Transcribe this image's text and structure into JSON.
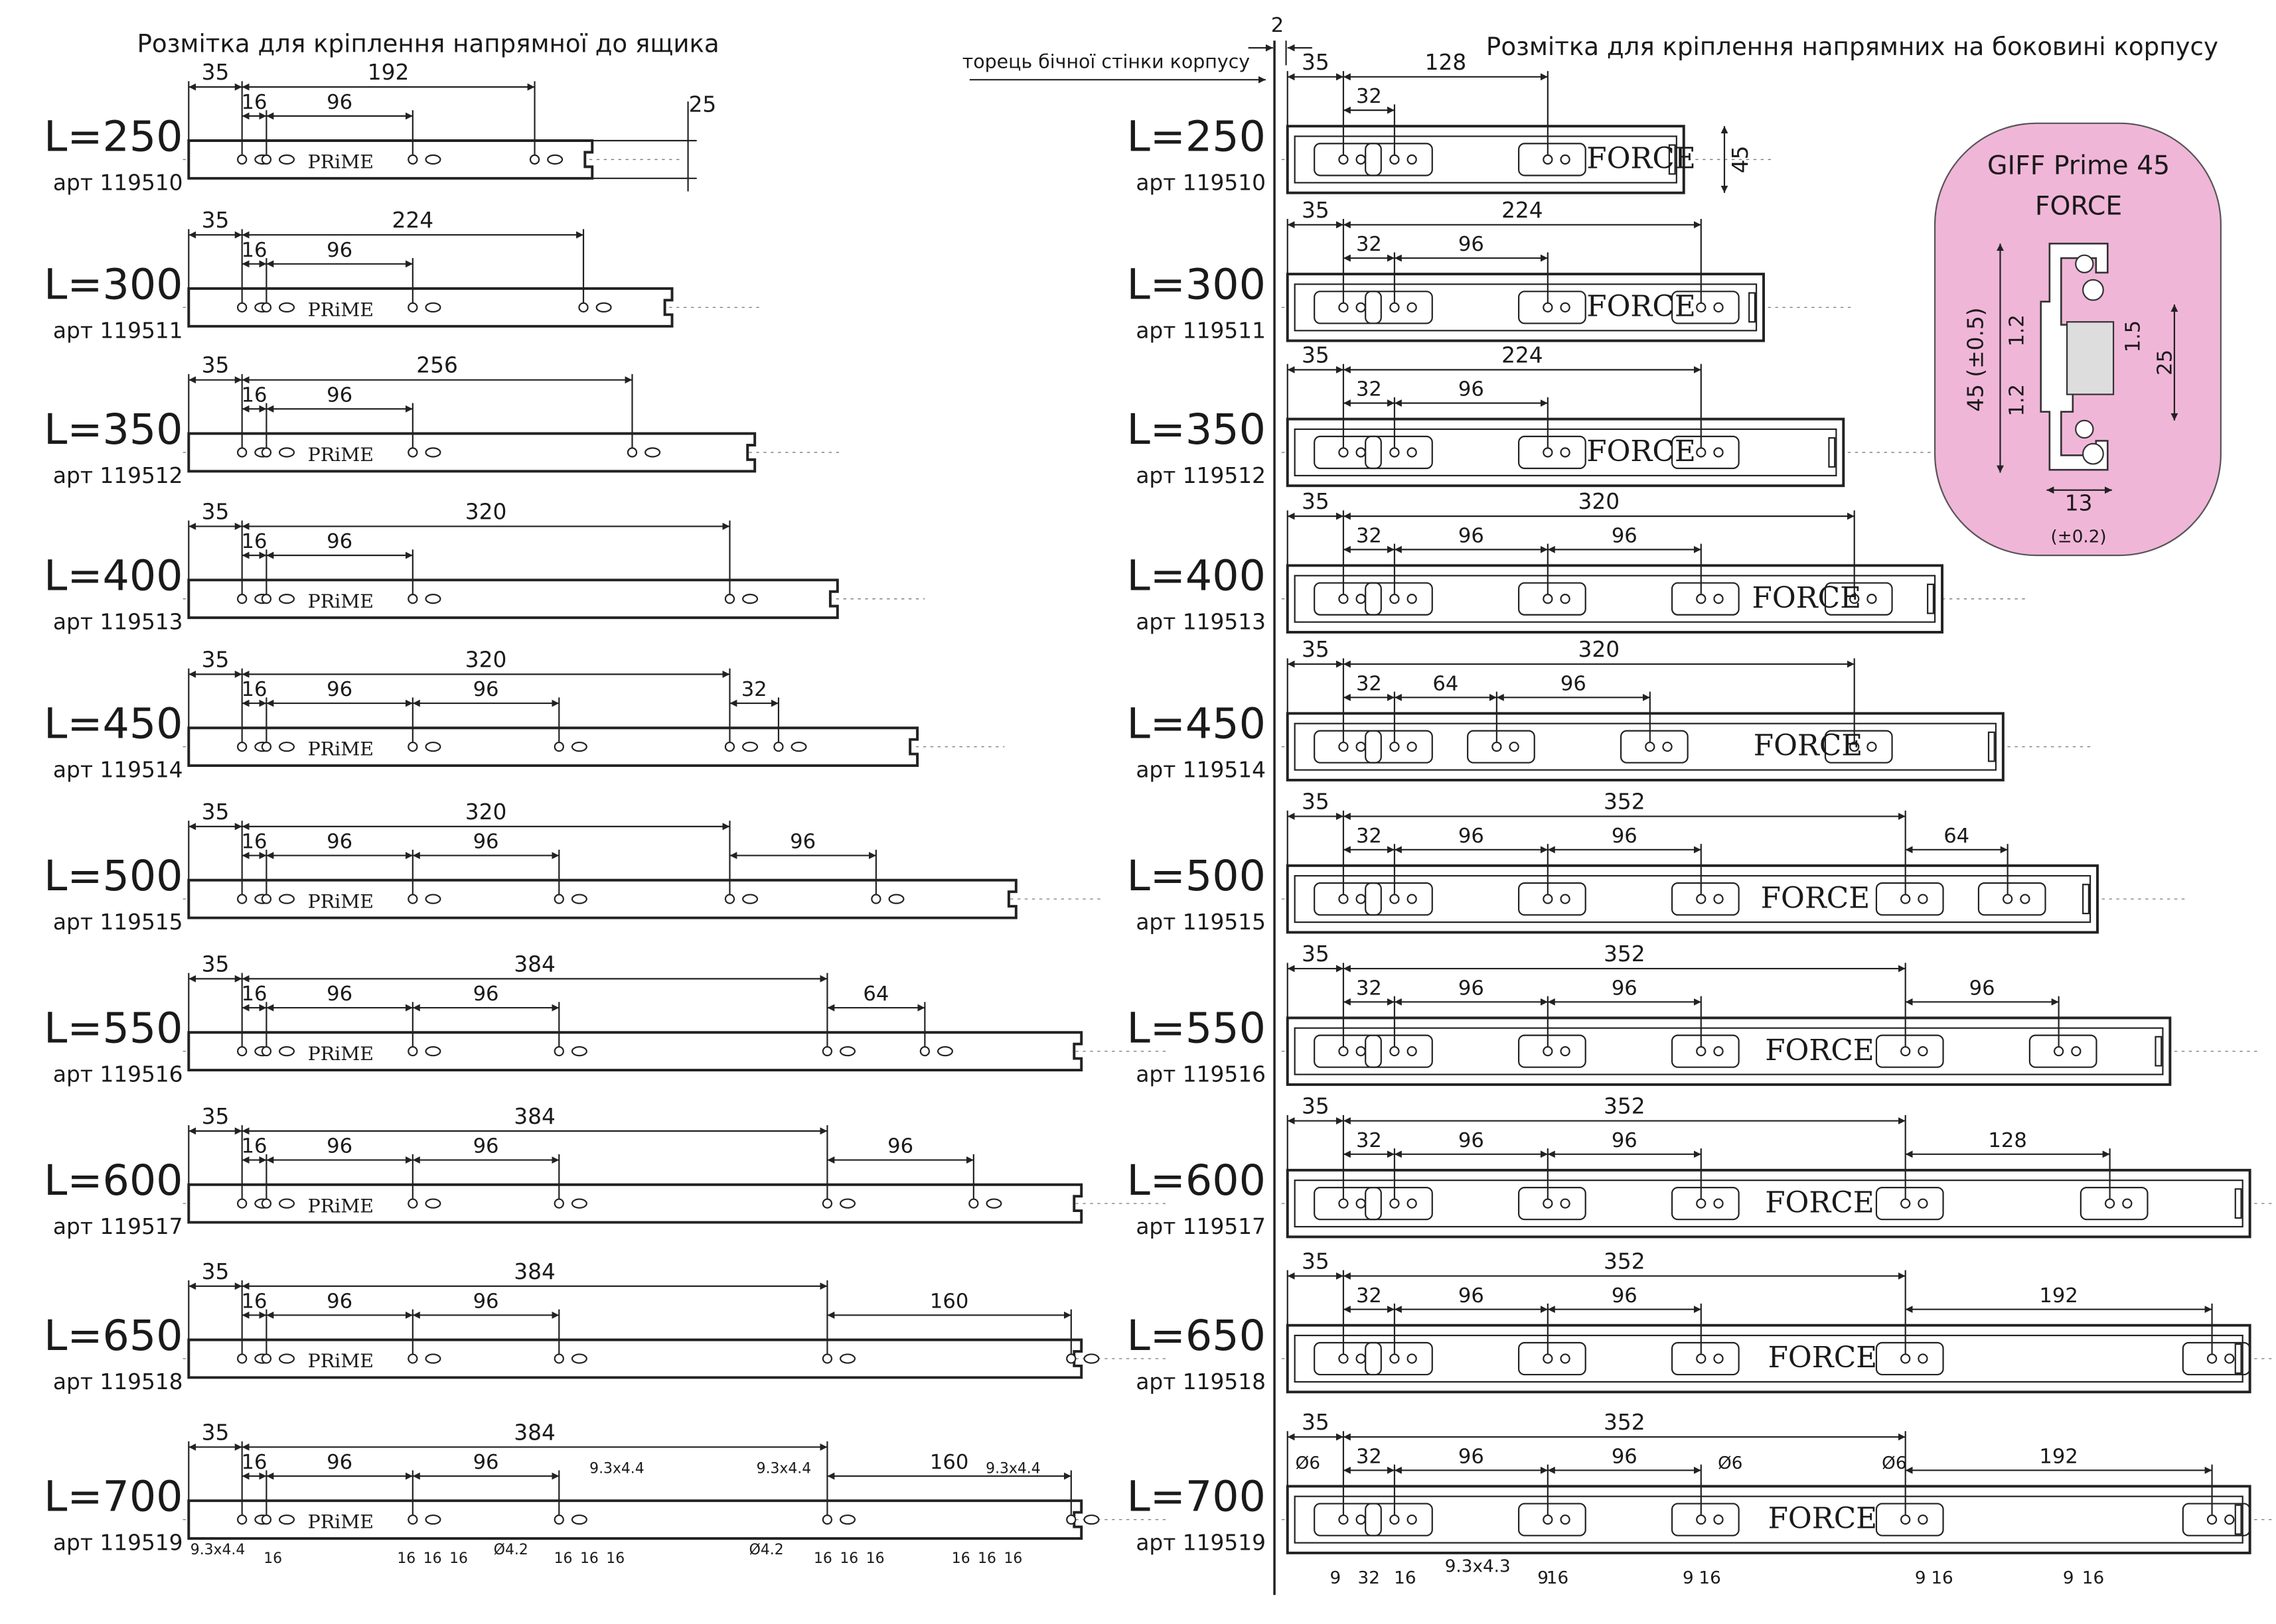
{
  "left": {
    "title": "Розмітка для кріплення напрямної до ящика",
    "brand": "PRiME",
    "rails": [
      {
        "length": "L=250",
        "article": "арт 119510",
        "top": [
          35,
          192
        ],
        "mid": [
          16,
          96
        ],
        "height": 25
      },
      {
        "length": "L=300",
        "article": "арт 119511",
        "top": [
          35,
          224
        ],
        "mid": [
          16,
          96
        ]
      },
      {
        "length": "L=350",
        "article": "арт 119512",
        "top": [
          35,
          256
        ],
        "mid": [
          16,
          96
        ]
      },
      {
        "length": "L=400",
        "article": "арт 119513",
        "top": [
          35,
          320
        ],
        "mid": [
          16,
          96
        ]
      },
      {
        "length": "L=450",
        "article": "арт 119514",
        "top": [
          35,
          320
        ],
        "mid": [
          16,
          96,
          96
        ],
        "tail": [
          32
        ]
      },
      {
        "length": "L=500",
        "article": "арт 119515",
        "top": [
          35,
          320
        ],
        "mid": [
          16,
          96,
          96
        ],
        "tail": [
          96
        ]
      },
      {
        "length": "L=550",
        "article": "арт 119516",
        "top": [
          35,
          384
        ],
        "mid": [
          16,
          96,
          96
        ],
        "tail": [
          64
        ]
      },
      {
        "length": "L=600",
        "article": "арт 119517",
        "top": [
          35,
          384
        ],
        "mid": [
          16,
          96,
          96
        ],
        "tail": [
          96
        ]
      },
      {
        "length": "L=650",
        "article": "арт 119518",
        "top": [
          35,
          384
        ],
        "mid": [
          16,
          96,
          96
        ],
        "tail": [
          160
        ]
      },
      {
        "length": "L=700",
        "article": "арт 119519",
        "top": [
          35,
          384
        ],
        "mid": [
          16,
          96,
          96
        ],
        "tail": [
          160
        ]
      }
    ]
  },
  "right": {
    "title": "Розмітка для кріплення напрямних на боковині корпусу",
    "edge_label": "торець бічної стінки корпусу",
    "gap": 2,
    "brand": "FORCE",
    "rails": [
      {
        "length": "L=250",
        "article": "арт 119510",
        "top": [
          35,
          128
        ],
        "mid": [
          32
        ],
        "height": 45
      },
      {
        "length": "L=300",
        "article": "арт 119511",
        "top": [
          35,
          224
        ],
        "mid": [
          32,
          96
        ]
      },
      {
        "length": "L=350",
        "article": "арт 119512",
        "top": [
          35,
          224
        ],
        "mid": [
          32,
          96
        ]
      },
      {
        "length": "L=400",
        "article": "арт 119513",
        "top": [
          35,
          320
        ],
        "mid": [
          32,
          96,
          96
        ]
      },
      {
        "length": "L=450",
        "article": "арт 119514",
        "top": [
          35,
          320
        ],
        "mid": [
          32,
          64,
          96
        ]
      },
      {
        "length": "L=500",
        "article": "арт 119515",
        "top": [
          35,
          352
        ],
        "mid": [
          32,
          96,
          96
        ],
        "tail": [
          64
        ]
      },
      {
        "length": "L=550",
        "article": "арт 119516",
        "top": [
          35,
          352
        ],
        "mid": [
          32,
          96,
          96
        ],
        "tail": [
          96
        ]
      },
      {
        "length": "L=600",
        "article": "арт 119517",
        "top": [
          35,
          352
        ],
        "mid": [
          32,
          96,
          96
        ],
        "tail": [
          128
        ]
      },
      {
        "length": "L=650",
        "article": "арт 119518",
        "top": [
          35,
          352
        ],
        "mid": [
          32,
          96,
          96
        ],
        "tail": [
          192
        ]
      },
      {
        "length": "L=700",
        "article": "арт 119519",
        "top": [
          35,
          352
        ],
        "mid": [
          32,
          96,
          96
        ],
        "tail": [
          192
        ]
      }
    ]
  },
  "left_notes": [
    "9.3x4.4",
    "16",
    "16",
    "16",
    "16",
    "9.3x4.4",
    "Ø4.2",
    "16",
    "16",
    "16",
    "9.3x4.4",
    "Ø4.2",
    "16",
    "16",
    "16",
    "9.3x4.4",
    "16",
    "16",
    "16"
  ],
  "right_notes": [
    "Ø6",
    "Ø6",
    "Ø6",
    "9.3x4.3",
    "9",
    "32",
    "16",
    "9",
    "16",
    "9",
    "16",
    "9",
    "16",
    "9",
    "16"
  ],
  "inset": {
    "title": "GIFF Prime 45",
    "subtitle": "FORCE",
    "dims": [
      "45 (±0.5)",
      "1.2",
      "1.2",
      "1.5",
      "25",
      "13",
      "(±0.2)"
    ]
  }
}
